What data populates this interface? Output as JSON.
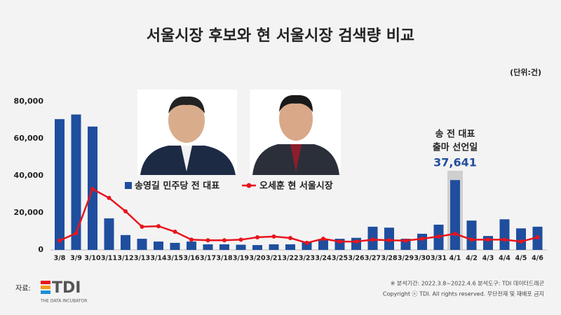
{
  "chart_data": {
    "type": "bar_line",
    "title": "서울시장 후보와 현 서울시장 검색량 비교",
    "unit": "(단위:건)",
    "categories": [
      "3/8",
      "3/9",
      "3/10",
      "3/11",
      "3/12",
      "3/13",
      "3/14",
      "3/15",
      "3/16",
      "3/17",
      "3/18",
      "3/19",
      "3/20",
      "3/21",
      "3/22",
      "3/23",
      "3/24",
      "3/25",
      "3/26",
      "3/27",
      "3/28",
      "3/29",
      "3/30",
      "3/31",
      "4/1",
      "4/2",
      "4/3",
      "4/4",
      "4/5",
      "4/6"
    ],
    "series": [
      {
        "name": "송영길 민주당 전 대표",
        "type": "bar",
        "color": "#1f4e9e",
        "values": [
          70500,
          73000,
          66500,
          17000,
          8000,
          6000,
          4500,
          3800,
          4500,
          3000,
          3000,
          2800,
          2600,
          3000,
          3000,
          4000,
          5500,
          6000,
          6500,
          12500,
          12000,
          6000,
          8700,
          13600,
          37641,
          15800,
          7500,
          16500,
          11600,
          12500
        ],
        "value_labels": [
          null,
          null,
          null,
          null,
          null,
          null,
          null,
          null,
          null,
          null,
          null,
          null,
          null,
          null,
          null,
          null,
          null,
          null,
          null,
          null,
          null,
          null,
          null,
          null,
          "37,641",
          null,
          null,
          null,
          null,
          null
        ]
      },
      {
        "name": "오세훈 현 서울시장",
        "type": "line",
        "color": "#e8141c",
        "values": [
          5000,
          9000,
          32800,
          28000,
          20800,
          12500,
          12800,
          9800,
          5500,
          5200,
          5200,
          5500,
          6800,
          7200,
          6400,
          3800,
          6000,
          4500,
          4500,
          5500,
          5200,
          5000,
          6000,
          7200,
          8700,
          5500,
          5500,
          5500,
          4500,
          6800
        ]
      }
    ],
    "annotation": {
      "index": 24,
      "lines": [
        "송 전 대표",
        "출마 선언일"
      ]
    },
    "ylim": [
      0,
      80000
    ],
    "yticks": [
      0,
      {
        "value": 20000,
        "label": "20,000"
      },
      {
        "value": 40000,
        "label": "40,000"
      },
      {
        "value": 60000,
        "label": "60,000"
      },
      {
        "value": 80000,
        "label": "80,000"
      }
    ],
    "source_label": "자료:",
    "logo": "TDI",
    "logo_sub": "THE DATA INCUBATOR",
    "notes": [
      "※ 분석기간: 2022.3.8~2022.4.6   분석도구: TDI 데이터드래곤",
      "Copyright ⓒ TDI. All rights reserved. 무단전재 및 재배포 금지"
    ]
  }
}
